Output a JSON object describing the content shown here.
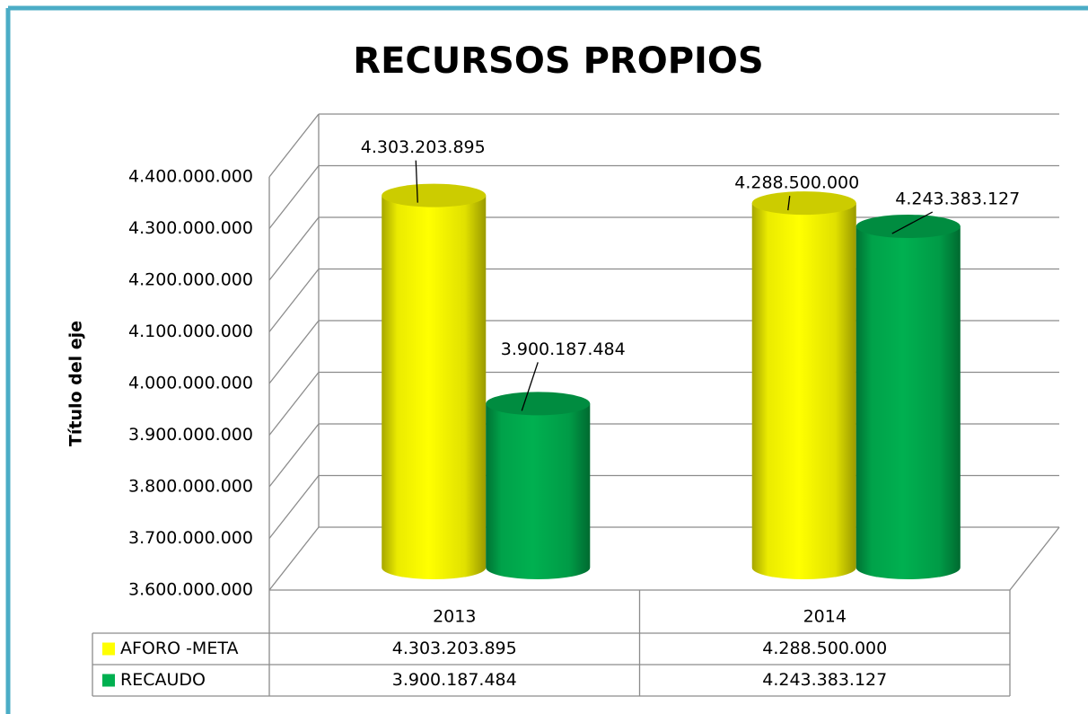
{
  "chart_data": {
    "type": "bar3d",
    "title": "RECURSOS PROPIOS",
    "y_label": "Título del eje",
    "categories": [
      "2013",
      "2014"
    ],
    "series": [
      {
        "name": "AFORO -META",
        "color": "#ffff00",
        "values": [
          4303203895,
          4288500000
        ],
        "value_labels": [
          "4.303.203.895",
          "4.288.500.000"
        ]
      },
      {
        "name": "RECAUDO",
        "color": "#00b050",
        "values": [
          3900187484,
          4243383127
        ],
        "value_labels": [
          "3.900.187.484",
          "4.243.383.127"
        ]
      }
    ],
    "ylim": [
      3600000000,
      4400000000
    ],
    "yticks": [
      {
        "value": 3600000000,
        "label": "3.600.000.000"
      },
      {
        "value": 3700000000,
        "label": "3.700.000.000"
      },
      {
        "value": 3800000000,
        "label": "3.800.000.000"
      },
      {
        "value": 3900000000,
        "label": "3.900.000.000"
      },
      {
        "value": 4000000000,
        "label": "4.000.000.000"
      },
      {
        "value": 4100000000,
        "label": "4.100.000.000"
      },
      {
        "value": 4200000000,
        "label": "4.200.000.000"
      },
      {
        "value": 4300000000,
        "label": "4.300.000.000"
      },
      {
        "value": 4400000000,
        "label": "4.400.000.000"
      }
    ],
    "grid": true,
    "data_table": true
  }
}
